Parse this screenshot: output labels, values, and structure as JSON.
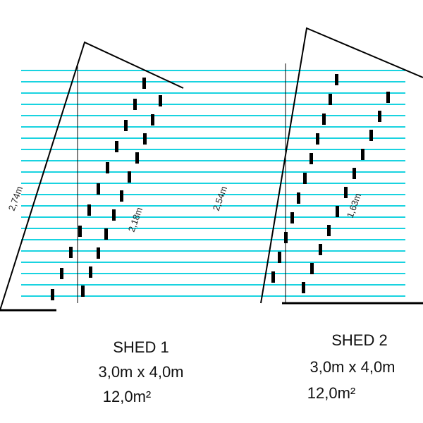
{
  "left_shed": {
    "height_label": "2,74m",
    "inner_height_label": "2,18m",
    "name": "SHED 1",
    "size": "3,0m x 4,0m",
    "area": "12,0m²"
  },
  "right_shed": {
    "height_label": "2,54m",
    "inner_height_label": "1,63m",
    "name": "SHED 2",
    "size": "3,0m x 4,0m",
    "area": "12,0m²"
  }
}
